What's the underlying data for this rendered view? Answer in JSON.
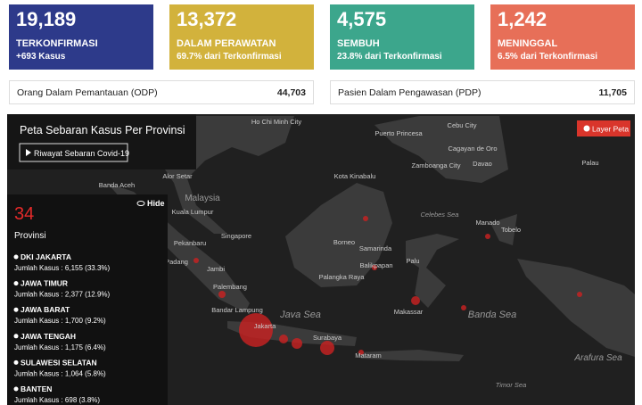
{
  "cards": [
    {
      "number": "19,189",
      "label": "TERKONFIRMASI",
      "sub": "+693 Kasus"
    },
    {
      "number": "13,372",
      "label": "DALAM PERAWATAN",
      "sub": "69.7% dari Terkonfirmasi"
    },
    {
      "number": "4,575",
      "label": "SEMBUH",
      "sub": "23.8% dari Terkonfirmasi"
    },
    {
      "number": "1,242",
      "label": "MENINGGAL",
      "sub": "6.5% dari Terkonfirmasi"
    }
  ],
  "odp": {
    "label": "Orang Dalam Pemantauan (ODP)",
    "value": "44,703"
  },
  "pdp": {
    "label": "Pasien Dalam Pengawasan (PDP)",
    "value": "11,705"
  },
  "map": {
    "title": "Peta Sebaran Kasus Per Provinsi",
    "history_button": "Riwayat Sebaran Covid-19",
    "layer_button": "Layer Peta",
    "hide": "Hide",
    "labels": [
      "Ho Chi Minh City",
      "Puerto Princesa",
      "Cebu City",
      "Cagayan de Oro",
      "Zamboanga City",
      "Davao",
      "Palau",
      "Banda Aceh",
      "Alor Setar",
      "Kota Kinabalu",
      "Malaysia",
      "Kuala Lumpur",
      "Celebes Sea",
      "Manado",
      "Tobelo",
      "Pekanbaru",
      "Singapore",
      "Borneo",
      "Samarinda",
      "Padang",
      "Jambi",
      "Balikpapan",
      "Palu",
      "Palembang",
      "Palangka Raya",
      "Bandar Lampung",
      "Java Sea",
      "Makassar",
      "Banda Sea",
      "Jakarta",
      "Surabaya",
      "Mataram",
      "Arafura Sea",
      "Timor Sea"
    ]
  },
  "provinces": {
    "count": "34",
    "label": "Provinsi",
    "items": [
      {
        "name": "DKI JAKARTA",
        "text": "Jumlah Kasus : 6,155 (33.3%)"
      },
      {
        "name": "JAWA TIMUR",
        "text": "Jumlah Kasus : 2,377 (12.9%)"
      },
      {
        "name": "JAWA BARAT",
        "text": "Jumlah Kasus : 1,700 (9.2%)"
      },
      {
        "name": "JAWA TENGAH",
        "text": "Jumlah Kasus : 1,175 (6.4%)"
      },
      {
        "name": "SULAWESI SELATAN",
        "text": "Jumlah Kasus : 1,064 (5.8%)"
      },
      {
        "name": "BANTEN",
        "text": "Jumlah Kasus : 698 (3.8%)"
      }
    ]
  }
}
